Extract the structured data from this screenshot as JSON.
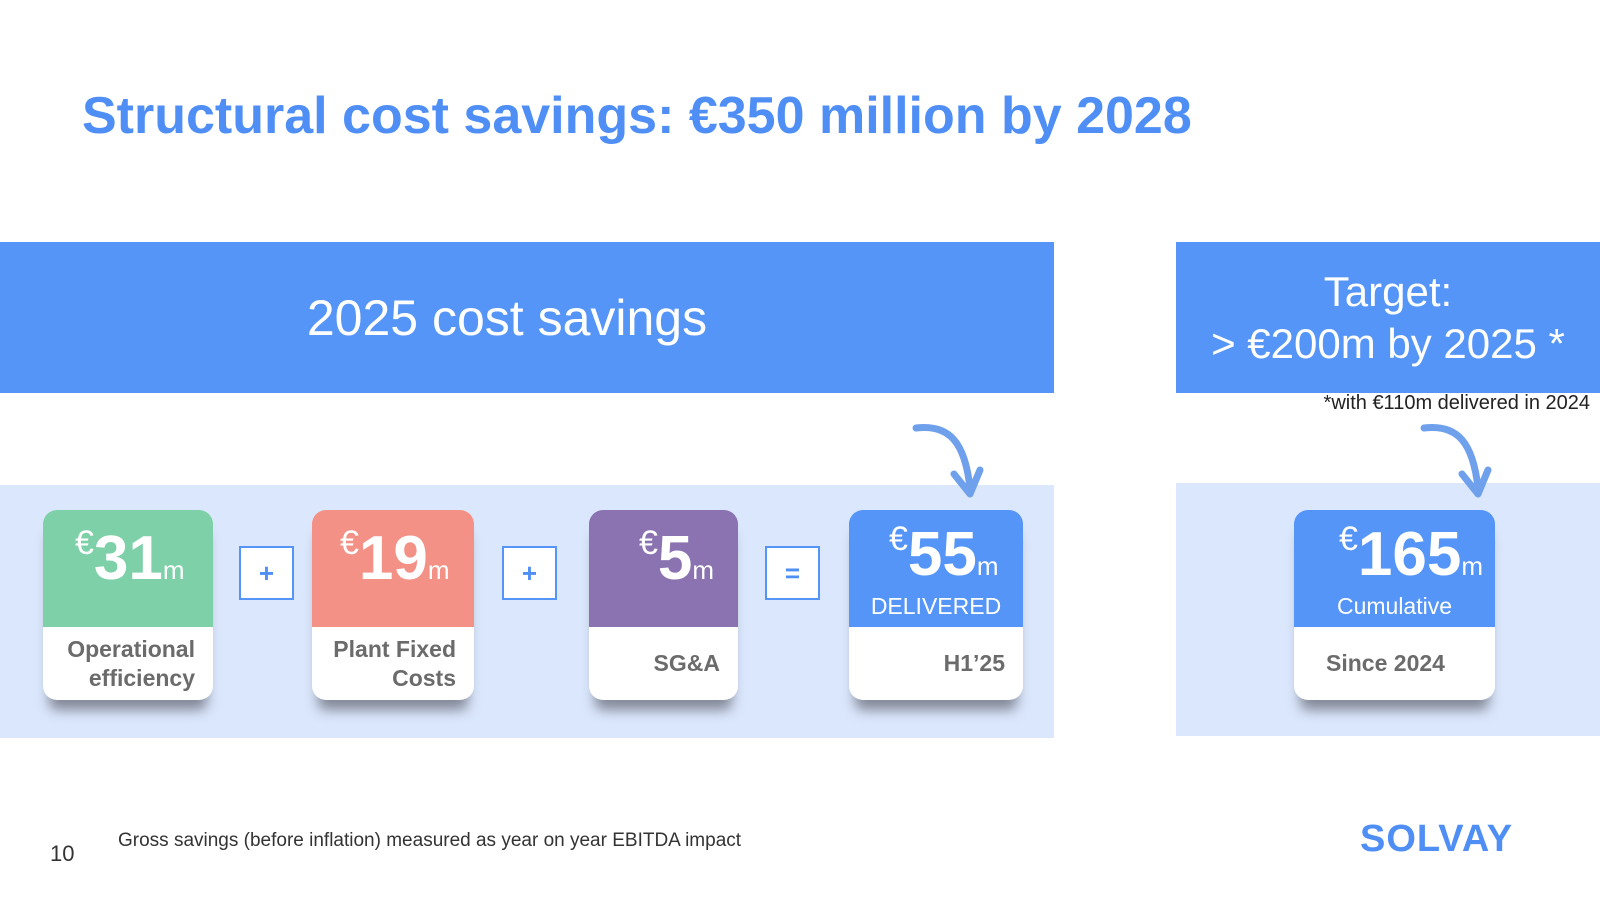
{
  "title": "Structural cost savings: €350 million by 2028",
  "banner_left": "2025 cost savings",
  "banner_right": {
    "line1": "Target:",
    "line2": "> €200m by 2025 *"
  },
  "target_footnote": "*with €110m delivered in 2024",
  "operators": [
    "+",
    "+",
    "="
  ],
  "cards": [
    {
      "currency": "€",
      "value": "31",
      "unit": "m",
      "sub": "",
      "label_line1": "Operational",
      "label_line2": "efficiency",
      "color": "#7dd0a8"
    },
    {
      "currency": "€",
      "value": "19",
      "unit": "m",
      "sub": "",
      "label_line1": "Plant Fixed",
      "label_line2": "Costs",
      "color": "#f39186"
    },
    {
      "currency": "€",
      "value": "5",
      "unit": "m",
      "sub": "",
      "label_line1": "SG&A",
      "label_line2": "",
      "color": "#8a73b0"
    },
    {
      "currency": "€",
      "value": "55",
      "unit": "m",
      "sub": "DELIVERED",
      "label_line1": "H1’25",
      "label_line2": "",
      "color": "#5595f8"
    },
    {
      "currency": "€",
      "value": "165",
      "unit": "m",
      "sub": "Cumulative",
      "label_line1": "Since 2024",
      "label_line2": "",
      "color": "#5595f8"
    }
  ],
  "footer": {
    "page_number": "10",
    "note": "Gross savings (before inflation) measured as year on year EBITDA impact",
    "logo": "SOLVAY"
  },
  "icons": [
    "curved-arrow-icon",
    "curved-arrow-icon"
  ]
}
